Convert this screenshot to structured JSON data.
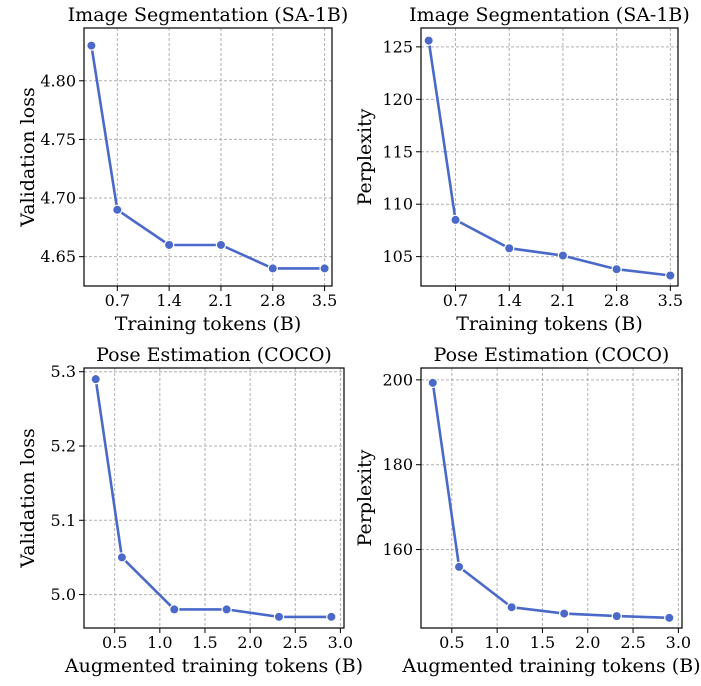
{
  "chart_data": [
    {
      "type": "line",
      "title": "Image Segmentation (SA-1B)",
      "xlabel": "Training tokens (B)",
      "ylabel": "Validation loss",
      "x": [
        0.35,
        0.7,
        1.4,
        2.1,
        2.8,
        3.5
      ],
      "series": [
        {
          "values": [
            4.83,
            4.69,
            4.66,
            4.66,
            4.64,
            4.64
          ]
        }
      ],
      "xticks": [
        0.7,
        1.4,
        2.1,
        2.8,
        3.5
      ],
      "xtick_labels": [
        "0.7",
        "1.4",
        "2.1",
        "2.8",
        "3.5"
      ],
      "yticks": [
        4.65,
        4.7,
        4.75,
        4.8
      ],
      "ytick_labels": [
        "4.65",
        "4.70",
        "4.75",
        "4.80"
      ],
      "xlim": [
        0.25,
        3.6
      ],
      "ylim": [
        4.625,
        4.845
      ],
      "grid": true,
      "color": "#4a69c9"
    },
    {
      "type": "line",
      "title": "Image Segmentation (SA-1B)",
      "xlabel": "Training tokens (B)",
      "ylabel": "Perplexity",
      "x": [
        0.35,
        0.7,
        1.4,
        2.1,
        2.8,
        3.5
      ],
      "series": [
        {
          "values": [
            125.6,
            108.5,
            105.8,
            105.1,
            103.8,
            103.2
          ]
        }
      ],
      "xticks": [
        0.7,
        1.4,
        2.1,
        2.8,
        3.5
      ],
      "xtick_labels": [
        "0.7",
        "1.4",
        "2.1",
        "2.8",
        "3.5"
      ],
      "yticks": [
        105,
        110,
        115,
        120,
        125
      ],
      "ytick_labels": [
        "105",
        "110",
        "115",
        "120",
        "125"
      ],
      "xlim": [
        0.25,
        3.6
      ],
      "ylim": [
        102.2,
        126.8
      ],
      "grid": true,
      "color": "#4a69c9"
    },
    {
      "type": "line",
      "title": "Pose Estimation (COCO)",
      "xlabel": "Augmented training tokens (B)",
      "ylabel": "Validation loss",
      "x": [
        0.29,
        0.58,
        1.16,
        1.74,
        2.32,
        2.9
      ],
      "series": [
        {
          "values": [
            5.29,
            5.05,
            4.98,
            4.98,
            4.97,
            4.97
          ]
        }
      ],
      "xticks": [
        0.5,
        1.0,
        1.5,
        2.0,
        2.5,
        3.0
      ],
      "xtick_labels": [
        "0.5",
        "1.0",
        "1.5",
        "2.0",
        "2.5",
        "3.0"
      ],
      "yticks": [
        5.0,
        5.1,
        5.2,
        5.3
      ],
      "ytick_labels": [
        "5.0",
        "5.1",
        "5.2",
        "5.3"
      ],
      "xlim": [
        0.16,
        3.04
      ],
      "ylim": [
        4.955,
        5.305
      ],
      "grid": true,
      "color": "#4a69c9"
    },
    {
      "type": "line",
      "title": "Pose Estimation (COCO)",
      "xlabel": "Augmented training tokens (B)",
      "ylabel": "Perplexity",
      "x": [
        0.29,
        0.58,
        1.16,
        1.74,
        2.32,
        2.9
      ],
      "series": [
        {
          "values": [
            199.3,
            155.9,
            146.4,
            144.9,
            144.3,
            143.9
          ]
        }
      ],
      "xticks": [
        0.5,
        1.0,
        1.5,
        2.0,
        2.5,
        3.0
      ],
      "xtick_labels": [
        "0.5",
        "1.0",
        "1.5",
        "2.0",
        "2.5",
        "3.0"
      ],
      "yticks": [
        160,
        180,
        200
      ],
      "ytick_labels": [
        "160",
        "180",
        "200"
      ],
      "xlim": [
        0.16,
        3.04
      ],
      "ylim": [
        141.5,
        202.8
      ],
      "grid": true,
      "color": "#4a69c9"
    }
  ]
}
